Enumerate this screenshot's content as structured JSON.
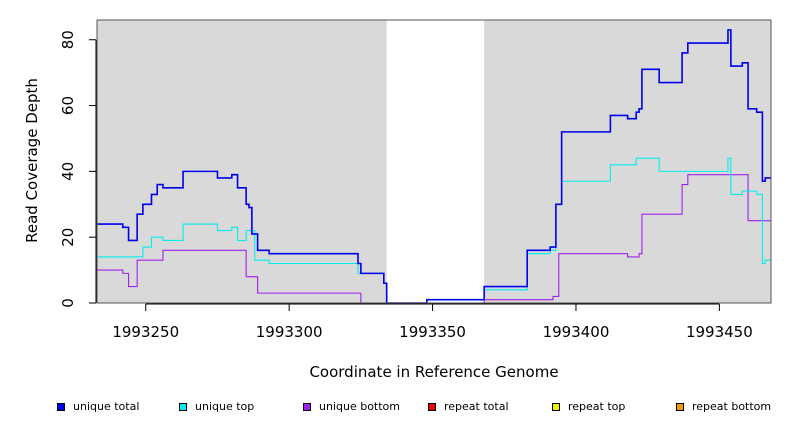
{
  "chart_data": {
    "type": "line",
    "step": true,
    "xlabel": "Coordinate in Reference Genome",
    "ylabel": "Read Coverage Depth",
    "xlim": [
      1993233,
      1993468
    ],
    "ylim": [
      0,
      86
    ],
    "xticks": [
      1993250,
      1993300,
      1993350,
      1993400,
      1993450
    ],
    "yticks": [
      0,
      20,
      40,
      60,
      80
    ],
    "shaded_regions": [
      [
        1993233,
        1993334
      ],
      [
        1993368,
        1993468
      ]
    ],
    "grid": false,
    "legend_position": "bottom",
    "series": [
      {
        "name": "unique total",
        "color": "#0000ee",
        "points": [
          [
            1993233,
            24
          ],
          [
            1993242,
            23
          ],
          [
            1993244,
            19
          ],
          [
            1993247,
            27
          ],
          [
            1993249,
            30
          ],
          [
            1993252,
            33
          ],
          [
            1993254,
            36
          ],
          [
            1993256,
            35
          ],
          [
            1993263,
            40
          ],
          [
            1993275,
            38
          ],
          [
            1993280,
            39
          ],
          [
            1993282,
            35
          ],
          [
            1993285,
            30
          ],
          [
            1993286,
            29
          ],
          [
            1993287,
            21
          ],
          [
            1993289,
            16
          ],
          [
            1993293,
            15
          ],
          [
            1993324,
            12
          ],
          [
            1993325,
            9
          ],
          [
            1993333,
            6
          ],
          [
            1993334,
            0
          ],
          [
            1993348,
            1
          ],
          [
            1993368,
            5
          ],
          [
            1993383,
            16
          ],
          [
            1993391,
            17
          ],
          [
            1993393,
            30
          ],
          [
            1993395,
            52
          ],
          [
            1993412,
            57
          ],
          [
            1993418,
            56
          ],
          [
            1993421,
            58
          ],
          [
            1993422,
            59
          ],
          [
            1993423,
            71
          ],
          [
            1993429,
            67
          ],
          [
            1993437,
            76
          ],
          [
            1993439,
            79
          ],
          [
            1993453,
            83
          ],
          [
            1993454,
            72
          ],
          [
            1993458,
            73
          ],
          [
            1993460,
            59
          ],
          [
            1993463,
            58
          ],
          [
            1993465,
            37
          ],
          [
            1993466,
            38
          ]
        ]
      },
      {
        "name": "unique top",
        "color": "#00eeee",
        "points": [
          [
            1993233,
            14
          ],
          [
            1993249,
            17
          ],
          [
            1993252,
            20
          ],
          [
            1993256,
            19
          ],
          [
            1993263,
            24
          ],
          [
            1993275,
            22
          ],
          [
            1993280,
            23
          ],
          [
            1993282,
            19
          ],
          [
            1993285,
            22
          ],
          [
            1993288,
            13
          ],
          [
            1993293,
            12
          ],
          [
            1993324,
            9
          ],
          [
            1993333,
            6
          ],
          [
            1993334,
            0
          ],
          [
            1993348,
            1
          ],
          [
            1993368,
            4
          ],
          [
            1993383,
            15
          ],
          [
            1993391,
            16
          ],
          [
            1993393,
            30
          ],
          [
            1993395,
            37
          ],
          [
            1993412,
            42
          ],
          [
            1993421,
            44
          ],
          [
            1993429,
            40
          ],
          [
            1993453,
            44
          ],
          [
            1993454,
            33
          ],
          [
            1993458,
            34
          ],
          [
            1993463,
            33
          ],
          [
            1993465,
            12
          ],
          [
            1993466,
            13
          ]
        ]
      },
      {
        "name": "unique bottom",
        "color": "#a020f0",
        "points": [
          [
            1993233,
            10
          ],
          [
            1993242,
            9
          ],
          [
            1993244,
            5
          ],
          [
            1993247,
            13
          ],
          [
            1993256,
            16
          ],
          [
            1993285,
            8
          ],
          [
            1993289,
            3
          ],
          [
            1993325,
            0
          ],
          [
            1993368,
            1
          ],
          [
            1993392,
            2
          ],
          [
            1993394,
            15
          ],
          [
            1993418,
            14
          ],
          [
            1993422,
            15
          ],
          [
            1993423,
            27
          ],
          [
            1993437,
            36
          ],
          [
            1993439,
            39
          ],
          [
            1993460,
            25
          ]
        ]
      },
      {
        "name": "repeat total",
        "color": "#ee0000",
        "points": [
          [
            1993233,
            0
          ],
          [
            1993468,
            0
          ]
        ]
      },
      {
        "name": "repeat top",
        "color": "#eeee00",
        "points": [
          [
            1993233,
            0
          ],
          [
            1993468,
            0
          ]
        ]
      },
      {
        "name": "repeat bottom",
        "color": "#ee9a00",
        "points": [
          [
            1993233,
            0
          ],
          [
            1993468,
            0
          ]
        ]
      }
    ]
  }
}
